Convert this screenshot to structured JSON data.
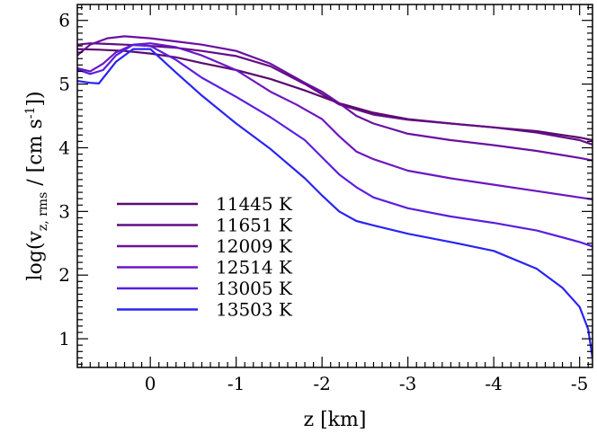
{
  "chart_data": {
    "type": "line",
    "xlabel": "z [km]",
    "ylabel": {
      "prefix": "log(v",
      "subscript": "z, rms",
      "middle": " / [cm s",
      "superscript": "-1",
      "suffix": "])"
    },
    "xlim": [
      0.85,
      -5.15
    ],
    "ylim": [
      0.55,
      6.25
    ],
    "xticks": [
      0,
      -1,
      -2,
      -3,
      -4,
      -5
    ],
    "xtick_labels": [
      "0",
      "-1",
      "-2",
      "-3",
      "-4",
      "-5"
    ],
    "yticks": [
      1,
      2,
      3,
      4,
      5,
      6
    ],
    "ytick_labels": [
      "1",
      "2",
      "3",
      "4",
      "5",
      "6"
    ],
    "legend_position": "lower-left",
    "grid": false,
    "series": [
      {
        "name": "11445 K",
        "color": "#5a0a6c",
        "x": [
          0.85,
          0.6,
          0.3,
          0,
          -0.3,
          -0.6,
          -1.0,
          -1.4,
          -1.8,
          -2.2,
          -2.6,
          -3.0,
          -3.5,
          -4.0,
          -4.5,
          -5.0,
          -5.15
        ],
        "y": [
          5.55,
          5.54,
          5.52,
          5.48,
          5.42,
          5.33,
          5.22,
          5.08,
          4.9,
          4.7,
          4.55,
          4.45,
          4.38,
          4.32,
          4.26,
          4.16,
          4.12
        ]
      },
      {
        "name": "11651 K",
        "color": "#630c85",
        "x": [
          0.85,
          0.7,
          0.5,
          0.3,
          0,
          -0.3,
          -0.6,
          -1.0,
          -1.4,
          -1.8,
          -2.2,
          -2.6,
          -3.0,
          -3.5,
          -4.0,
          -4.5,
          -5.0,
          -5.15
        ],
        "y": [
          5.62,
          5.64,
          5.63,
          5.62,
          5.6,
          5.57,
          5.52,
          5.44,
          5.28,
          5.0,
          4.68,
          4.52,
          4.44,
          4.38,
          4.32,
          4.24,
          4.12,
          4.05
        ]
      },
      {
        "name": "12009 K",
        "color": "#6b0fa2",
        "x": [
          0.85,
          0.7,
          0.5,
          0.3,
          0,
          -0.3,
          -0.6,
          -1.0,
          -1.4,
          -1.8,
          -2.0,
          -2.2,
          -2.4,
          -2.6,
          -3.0,
          -3.5,
          -4.0,
          -4.5,
          -5.0,
          -5.15
        ],
        "y": [
          5.45,
          5.62,
          5.72,
          5.75,
          5.72,
          5.67,
          5.62,
          5.52,
          5.32,
          5.02,
          4.88,
          4.7,
          4.5,
          4.38,
          4.22,
          4.12,
          4.04,
          3.95,
          3.84,
          3.8
        ]
      },
      {
        "name": "12514 K",
        "color": "#6d16c1",
        "x": [
          0.85,
          0.7,
          0.55,
          0.4,
          0.2,
          0,
          -0.3,
          -0.6,
          -1.0,
          -1.4,
          -1.7,
          -2.0,
          -2.2,
          -2.4,
          -2.6,
          -3.0,
          -3.5,
          -4.0,
          -4.5,
          -5.0,
          -5.15
        ],
        "y": [
          5.25,
          5.2,
          5.32,
          5.5,
          5.62,
          5.64,
          5.58,
          5.45,
          5.22,
          4.88,
          4.68,
          4.45,
          4.18,
          3.94,
          3.82,
          3.64,
          3.52,
          3.42,
          3.32,
          3.22,
          3.19
        ]
      },
      {
        "name": "13005 K",
        "color": "#5a1fe0",
        "x": [
          0.85,
          0.7,
          0.55,
          0.4,
          0.2,
          0,
          -0.3,
          -0.6,
          -1.0,
          -1.4,
          -1.8,
          -2.0,
          -2.2,
          -2.4,
          -2.6,
          -3.0,
          -3.5,
          -4.0,
          -4.5,
          -5.0,
          -5.15
        ],
        "y": [
          5.23,
          5.16,
          5.22,
          5.45,
          5.62,
          5.6,
          5.38,
          5.1,
          4.8,
          4.48,
          4.12,
          3.85,
          3.58,
          3.38,
          3.22,
          3.05,
          2.92,
          2.82,
          2.7,
          2.52,
          2.45
        ]
      },
      {
        "name": "13503 K",
        "color": "#2a24f2",
        "x": [
          0.85,
          0.7,
          0.6,
          0.4,
          0.2,
          0,
          -0.3,
          -0.6,
          -1.0,
          -1.4,
          -1.8,
          -2.0,
          -2.2,
          -2.4,
          -2.6,
          -3.0,
          -3.5,
          -4.0,
          -4.5,
          -4.8,
          -5.0,
          -5.1,
          -5.15
        ],
        "y": [
          5.05,
          5.02,
          5.01,
          5.35,
          5.55,
          5.55,
          5.18,
          4.82,
          4.38,
          3.98,
          3.52,
          3.25,
          3.0,
          2.85,
          2.78,
          2.65,
          2.52,
          2.38,
          2.1,
          1.8,
          1.5,
          1.15,
          0.7
        ]
      }
    ]
  }
}
